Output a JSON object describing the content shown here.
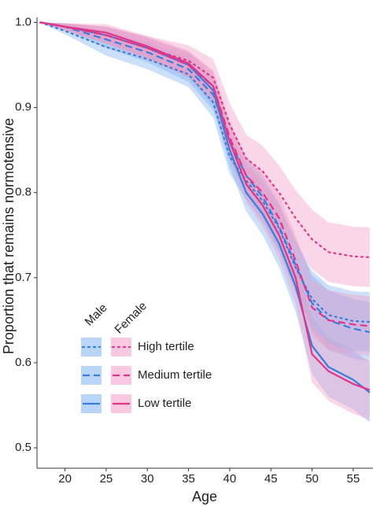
{
  "chart_data": {
    "type": "line",
    "x_label": "Age",
    "y_label": "Proportion that remains normotensive",
    "x": [
      17,
      20,
      25,
      30,
      35,
      38,
      40,
      42,
      44,
      46,
      48,
      50,
      52,
      55,
      57
    ],
    "xlim": [
      16.6,
      57.4
    ],
    "ylim": [
      0.476,
      1.006
    ],
    "xticks": [
      20,
      25,
      30,
      35,
      40,
      45,
      50,
      55
    ],
    "yticks": [
      0.5,
      0.6,
      0.7,
      0.8,
      0.9,
      {
        "value": 1,
        "label": "1.0"
      }
    ],
    "legend_rows": [
      "High tertile",
      "Medium tertile",
      "Low tertile"
    ],
    "groups": [
      {
        "name": "Male",
        "color": "#3b7ddb",
        "band_color": "#7fb2f0",
        "lines": [
          {
            "dash": "dotted",
            "values": [
              1,
              0.99,
              0.971,
              0.957,
              0.939,
              0.906,
              0.842,
              0.814,
              0.79,
              0.758,
              0.712,
              0.675,
              0.656,
              0.649,
              0.648
            ],
            "lower": [
              1,
              0.986,
              0.961,
              0.945,
              0.924,
              0.888,
              0.822,
              0.792,
              0.765,
              0.73,
              0.682,
              0.642,
              0.621,
              0.614,
              0.613
            ],
            "upper": [
              1,
              0.994,
              0.981,
              0.969,
              0.954,
              0.924,
              0.862,
              0.836,
              0.815,
              0.786,
              0.742,
              0.708,
              0.691,
              0.684,
              0.683
            ]
          },
          {
            "dash": "dashed",
            "values": [
              1,
              0.995,
              0.98,
              0.965,
              0.945,
              0.915,
              0.86,
              0.82,
              0.795,
              0.76,
              0.715,
              0.67,
              0.65,
              0.64,
              0.636
            ],
            "lower": [
              1,
              0.991,
              0.97,
              0.953,
              0.93,
              0.897,
              0.84,
              0.798,
              0.77,
              0.732,
              0.685,
              0.637,
              0.615,
              0.605,
              0.601
            ],
            "upper": [
              1,
              0.999,
              0.99,
              0.977,
              0.96,
              0.933,
              0.88,
              0.842,
              0.82,
              0.788,
              0.745,
              0.703,
              0.685,
              0.675,
              0.671
            ]
          },
          {
            "dash": "solid",
            "values": [
              1,
              0.995,
              0.985,
              0.97,
              0.95,
              0.92,
              0.85,
              0.8,
              0.775,
              0.74,
              0.69,
              0.62,
              0.595,
              0.58,
              0.565
            ],
            "lower": [
              1,
              0.991,
              0.975,
              0.958,
              0.935,
              0.902,
              0.83,
              0.778,
              0.75,
              0.712,
              0.66,
              0.587,
              0.56,
              0.545,
              0.53
            ],
            "upper": [
              1,
              0.999,
              0.995,
              0.982,
              0.965,
              0.938,
              0.87,
              0.822,
              0.8,
              0.768,
              0.72,
              0.653,
              0.63,
              0.615,
              0.6
            ]
          }
        ]
      },
      {
        "name": "Female",
        "color": "#e0368a",
        "band_color": "#f29cc6",
        "lines": [
          {
            "dash": "dotted",
            "values": [
              1,
              0.995,
              0.985,
              0.97,
              0.955,
              0.935,
              0.88,
              0.84,
              0.825,
              0.8,
              0.77,
              0.745,
              0.73,
              0.725,
              0.724
            ],
            "lower": [
              1,
              0.991,
              0.975,
              0.956,
              0.937,
              0.913,
              0.855,
              0.812,
              0.795,
              0.768,
              0.737,
              0.71,
              0.695,
              0.69,
              0.689
            ],
            "upper": [
              1,
              0.999,
              0.995,
              0.984,
              0.973,
              0.957,
              0.905,
              0.868,
              0.855,
              0.832,
              0.803,
              0.78,
              0.765,
              0.76,
              0.759
            ]
          },
          {
            "dash": "dashed",
            "values": [
              1,
              0.995,
              0.985,
              0.97,
              0.95,
              0.925,
              0.865,
              0.82,
              0.8,
              0.77,
              0.72,
              0.665,
              0.65,
              0.645,
              0.643
            ],
            "lower": [
              1,
              0.991,
              0.975,
              0.958,
              0.935,
              0.907,
              0.845,
              0.798,
              0.775,
              0.742,
              0.69,
              0.632,
              0.615,
              0.61,
              0.608
            ],
            "upper": [
              1,
              0.999,
              0.995,
              0.982,
              0.965,
              0.943,
              0.885,
              0.842,
              0.825,
              0.798,
              0.75,
              0.698,
              0.685,
              0.68,
              0.678
            ]
          },
          {
            "dash": "solid",
            "values": [
              1,
              0.995,
              0.988,
              0.972,
              0.952,
              0.925,
              0.86,
              0.81,
              0.785,
              0.75,
              0.7,
              0.61,
              0.59,
              0.575,
              0.568
            ],
            "lower": [
              1,
              0.991,
              0.978,
              0.96,
              0.937,
              0.907,
              0.84,
              0.788,
              0.76,
              0.722,
              0.67,
              0.577,
              0.555,
              0.54,
              0.533
            ],
            "upper": [
              1,
              0.999,
              0.998,
              0.984,
              0.967,
              0.943,
              0.88,
              0.832,
              0.81,
              0.778,
              0.73,
              0.643,
              0.625,
              0.61,
              0.603
            ]
          }
        ]
      }
    ]
  }
}
